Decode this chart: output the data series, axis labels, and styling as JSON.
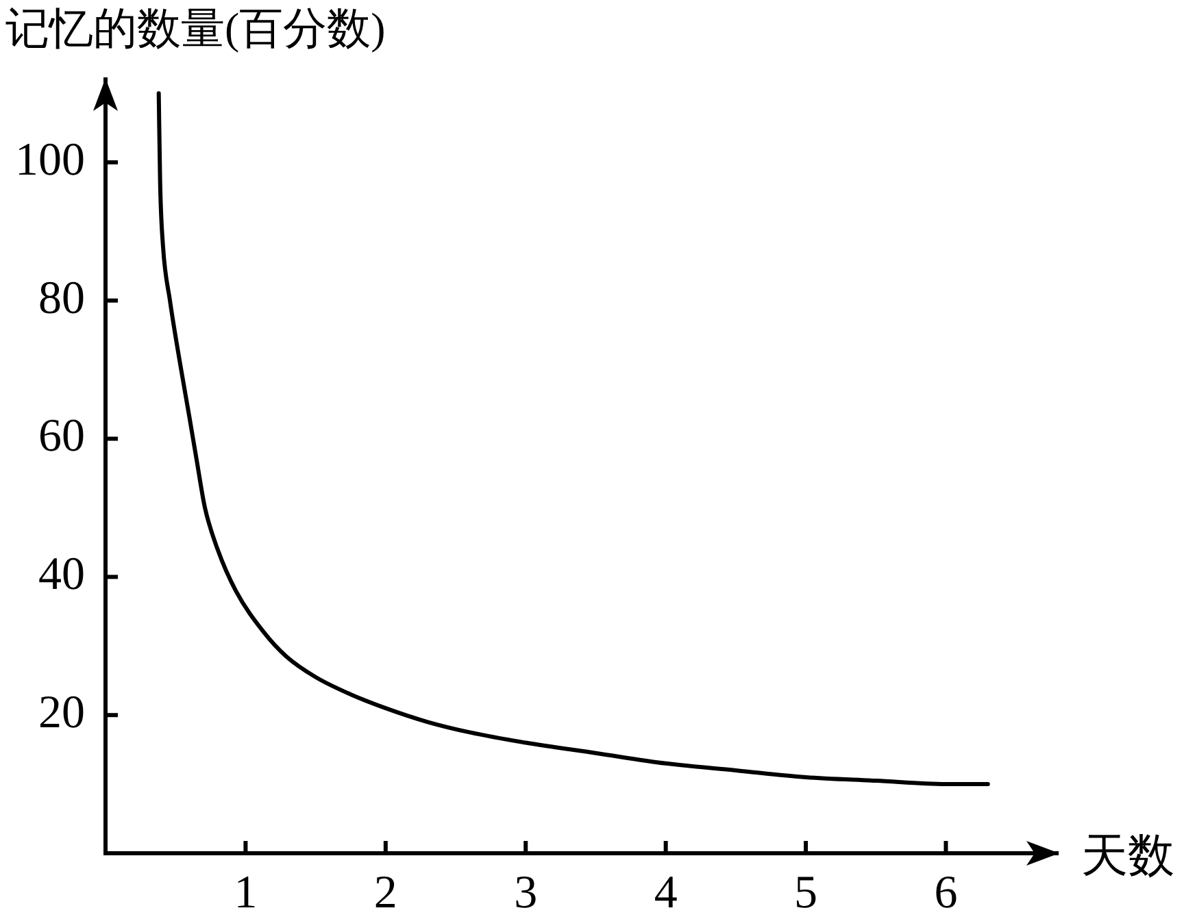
{
  "chart_data": {
    "type": "line",
    "ylabel": "记忆的数量(百分数)",
    "xlabel": "天数",
    "x": [
      0.38,
      0.39,
      0.41,
      0.46,
      0.54,
      0.6,
      0.65,
      0.71,
      0.8,
      0.93,
      1.13,
      1.29,
      1.5,
      1.75,
      2.0,
      2.3,
      2.6,
      3.0,
      3.5,
      4.0,
      4.5,
      5.0,
      5.5,
      6.0,
      6.3
    ],
    "values": [
      110,
      97,
      88,
      80,
      70,
      63,
      57,
      50,
      44,
      38,
      32,
      28.5,
      25.5,
      23,
      21,
      19,
      17.5,
      16,
      14.5,
      13,
      12,
      11,
      10.5,
      10,
      10
    ],
    "color": "#000000",
    "xlim": [
      0,
      6.8
    ],
    "ylim": [
      0,
      112
    ],
    "xticks": [
      1,
      2,
      3,
      4,
      5,
      6
    ],
    "yticks": [
      20,
      40,
      60,
      80,
      100
    ]
  }
}
